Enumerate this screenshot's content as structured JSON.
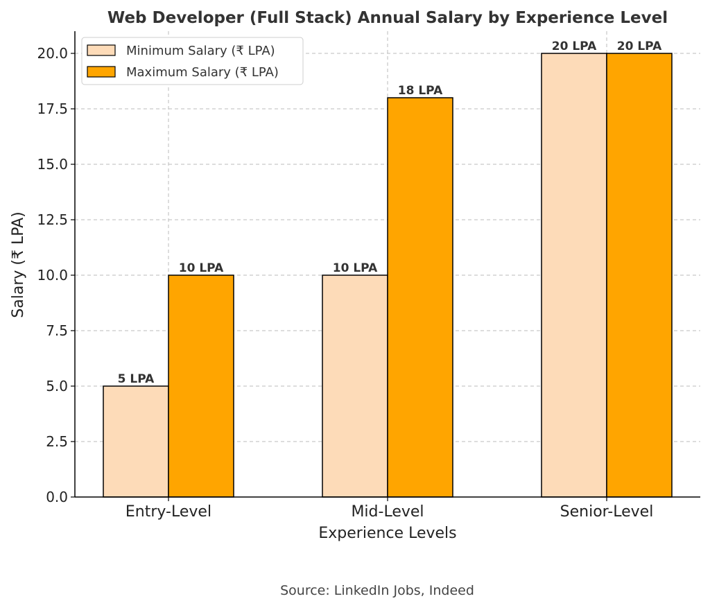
{
  "chart_data": {
    "type": "bar",
    "title": "Web Developer (Full Stack) Annual Salary by Experience Level",
    "xlabel": "Experience Levels",
    "ylabel": "Salary (₹ LPA)",
    "categories": [
      "Entry-Level",
      "Mid-Level",
      "Senior-Level"
    ],
    "series": [
      {
        "name": "Minimum Salary (₹ LPA)",
        "values": [
          5,
          10,
          20
        ],
        "labels": [
          "5 LPA",
          "10 LPA",
          "20 LPA"
        ],
        "color": "#FDDBB8"
      },
      {
        "name": "Maximum Salary (₹ LPA)",
        "values": [
          10,
          18,
          20
        ],
        "labels": [
          "10 LPA",
          "18 LPA",
          "20 LPA"
        ],
        "color": "#FFA500"
      }
    ],
    "ylim": [
      0,
      21
    ],
    "yticks": [
      0,
      2.5,
      5,
      7.5,
      10,
      12.5,
      15,
      17.5,
      20
    ],
    "ytick_labels": [
      "0.0",
      "2.5",
      "5.0",
      "7.5",
      "10.0",
      "12.5",
      "15.0",
      "17.5",
      "20.0"
    ],
    "grid": true,
    "legend_position": "top-left"
  },
  "footer": {
    "source": "Source: LinkedIn Jobs, Indeed"
  }
}
